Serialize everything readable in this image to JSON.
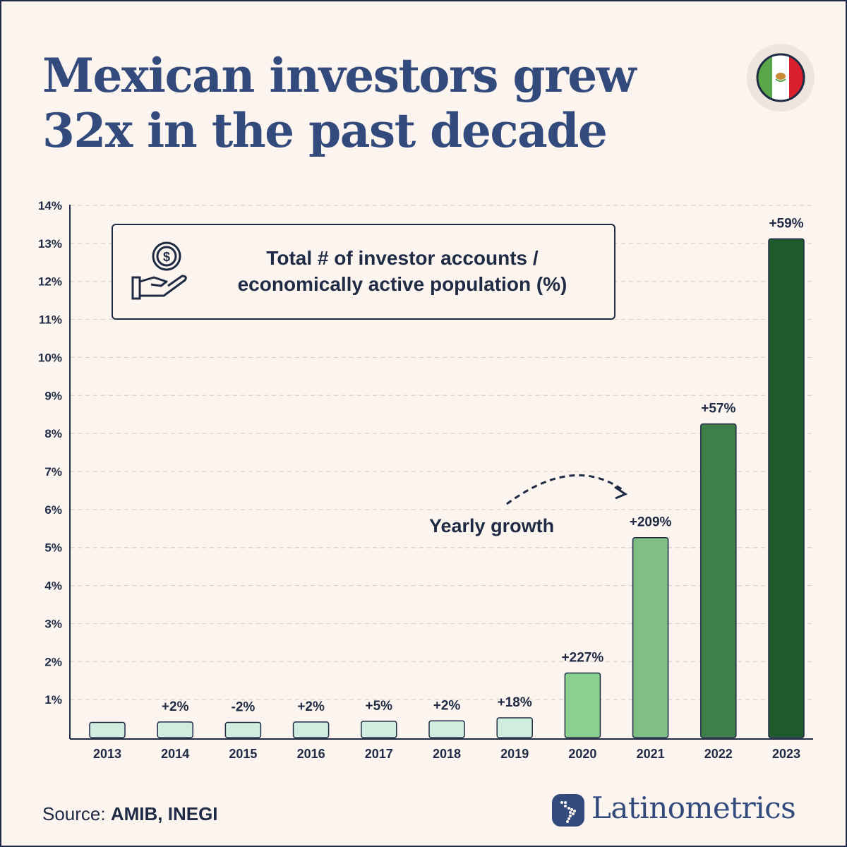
{
  "title": {
    "line1": "Mexican investors grew",
    "line2": "32x in the past decade"
  },
  "flag_icon": "mexico-flag-icon",
  "legend": {
    "icon": "money-hand-icon",
    "line1": "Total # of investor accounts /",
    "line2": "economically active population (%)"
  },
  "annotation": "Yearly growth",
  "source": {
    "prefix": "Source:",
    "names": "AMIB, INEGI"
  },
  "brand": {
    "name": "Latinometrics",
    "logo_icon": "latin-america-map-icon"
  },
  "colors": {
    "title": "#334a7d",
    "text": "#1f2a44",
    "background": "#fcf5ef",
    "bar_light": "#cfeee0",
    "bar_2020": "#8ad18f",
    "bar_2021": "#7fbf86",
    "bar_2022": "#3f7f4b",
    "bar_2023": "#1f5a2b"
  },
  "chart_data": {
    "type": "bar",
    "categories": [
      "2013",
      "2014",
      "2015",
      "2016",
      "2017",
      "2018",
      "2019",
      "2020",
      "2021",
      "2022",
      "2023"
    ],
    "values": [
      0.4,
      0.41,
      0.4,
      0.41,
      0.43,
      0.44,
      0.52,
      1.7,
      5.26,
      8.25,
      13.12
    ],
    "data_labels": [
      "",
      "+2%",
      "-2%",
      "+2%",
      "+5%",
      "+2%",
      "+18%",
      "+227%",
      "+209%",
      "+57%",
      "+59%"
    ],
    "bar_colors": [
      "#cfeee0",
      "#cfeee0",
      "#cfeee0",
      "#cfeee0",
      "#cfeee0",
      "#cfeee0",
      "#cfeee0",
      "#8ad18f",
      "#7fbf86",
      "#3f7f4b",
      "#1f5a2b"
    ],
    "y_ticks": [
      1,
      2,
      3,
      4,
      5,
      6,
      7,
      8,
      9,
      10,
      11,
      12,
      13,
      14
    ],
    "y_tick_labels": [
      "1%",
      "2%",
      "3%",
      "4%",
      "5%",
      "6%",
      "7%",
      "8%",
      "9%",
      "10%",
      "11%",
      "12%",
      "13%",
      "14%"
    ],
    "ylim": [
      0,
      14
    ],
    "grid": true
  }
}
